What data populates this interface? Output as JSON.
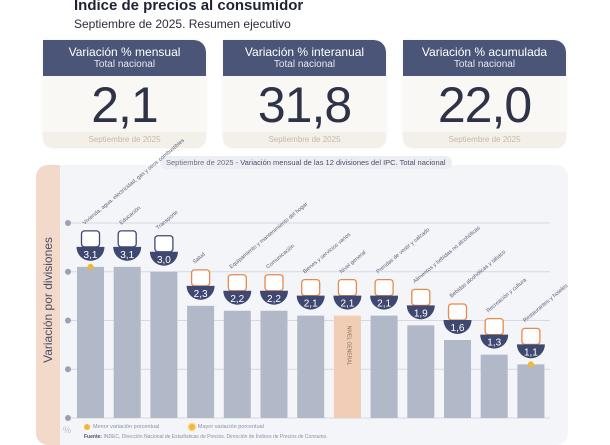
{
  "header": {
    "title": "Índice de precios al consumidor",
    "subtitle": "Septiembre de 2025. Resumen ejecutivo"
  },
  "cards": [
    {
      "title": "Variación % mensual",
      "subtitle": "Total nacional",
      "value": "2,1",
      "period": "Septiembre de 2025"
    },
    {
      "title": "Variación % interanual",
      "subtitle": "Total nacional",
      "value": "31,8",
      "period": "Septiembre de 2025"
    },
    {
      "title": "Variación % acumulada",
      "subtitle": "Total nacional",
      "value": "22,0",
      "period": "Septiembre de 2025"
    }
  ],
  "colors": {
    "header_navy": "#4b5578",
    "bar_gray": "#b1b8c7",
    "bar_general": "#f0cdb4",
    "badge_navy": "#3f4870",
    "accent_yellow": "#f2b830",
    "icon_orange": "#e8894a",
    "side_peach": "#f2d9ca"
  },
  "chart_data": {
    "type": "bar",
    "title_period": "Septiembre de 2025",
    "title": "Variación mensual de las 12 divisiones del IPC. Total nacional",
    "ylabel": "Variación por divisiones",
    "yunit": "%",
    "ylim": [
      0,
      4
    ],
    "yticks": [
      0,
      1,
      2,
      3,
      4
    ],
    "grid": true,
    "categories": [
      "Vivienda, agua, electricidad, gas y otros combustibles",
      "Educación",
      "Transporte",
      "Salud",
      "Equipamiento y mantenimiento del hogar",
      "Comunicación",
      "Bienes y servicios varios",
      "Nivel general",
      "Prendas de vestir y calzado",
      "Alimentos y bebidas no alcohólicas",
      "Bebidas alcohólicas y tabaco",
      "Recreación y cultura",
      "Restaurantes y hoteles"
    ],
    "values": [
      3.1,
      3.1,
      3.0,
      2.3,
      2.2,
      2.2,
      2.1,
      2.1,
      2.1,
      1.9,
      1.6,
      1.3,
      1.1
    ],
    "value_labels": [
      "3,1",
      "3,1",
      "3,0",
      "2,3",
      "2,2",
      "2,2",
      "2,1",
      "2,1",
      "2,1",
      "1,9",
      "1,6",
      "1,3",
      "1,1"
    ],
    "icons": [
      "house-utilities-icon",
      "education-icon",
      "transport-icon",
      "health-icon",
      "household-icon",
      "phone-icon",
      "misc-goods-icon",
      "general-level-icon",
      "clothing-icon",
      "food-icon",
      "alcohol-tobacco-icon",
      "recreation-icon",
      "restaurant-icon"
    ],
    "highlight": {
      "index": 7,
      "label": "NIVEL GENERAL"
    },
    "max_marker_index": 0,
    "min_marker_index": 12,
    "legend": [
      {
        "label": "Menor variación porcentual",
        "marker": "yellow-dot"
      },
      {
        "label": "Mayor variación porcentual",
        "marker": "yellow-dot-ring"
      }
    ]
  },
  "footer": {
    "source_label": "Fuente:",
    "source_text": "INDEC, Dirección Nacional de Estadísticas de Precios. Dirección de Índices de Precios de Consumo."
  }
}
